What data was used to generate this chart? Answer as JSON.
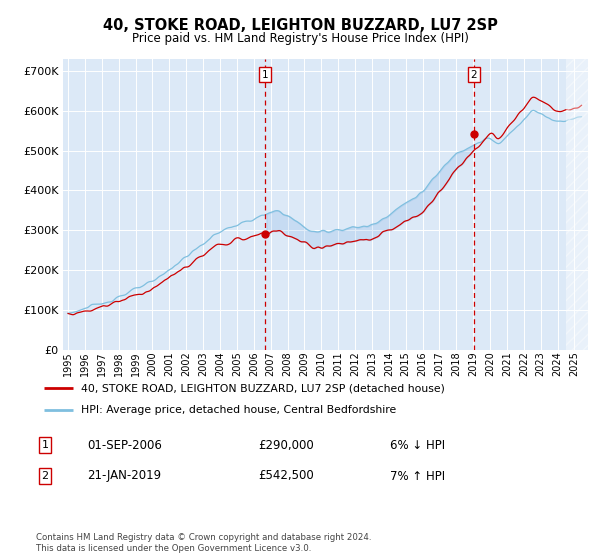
{
  "title": "40, STOKE ROAD, LEIGHTON BUZZARD, LU7 2SP",
  "subtitle": "Price paid vs. HM Land Registry's House Price Index (HPI)",
  "plot_bg_color": "#dce9f7",
  "ylim": [
    0,
    730000
  ],
  "yticks": [
    0,
    100000,
    200000,
    300000,
    400000,
    500000,
    600000,
    700000
  ],
  "sale1_date_num": 2006.67,
  "sale1_price": 290000,
  "sale2_date_num": 2019.05,
  "sale2_price": 542500,
  "hpi_color": "#7fbfdf",
  "price_color": "#cc0000",
  "legend_label1": "40, STOKE ROAD, LEIGHTON BUZZARD, LU7 2SP (detached house)",
  "legend_label2": "HPI: Average price, detached house, Central Bedfordshire",
  "table_row1_num": "1",
  "table_row1_date": "01-SEP-2006",
  "table_row1_price": "£290,000",
  "table_row1_hpi": "6% ↓ HPI",
  "table_row2_num": "2",
  "table_row2_date": "21-JAN-2019",
  "table_row2_price": "£542,500",
  "table_row2_hpi": "7% ↑ HPI",
  "footer": "Contains HM Land Registry data © Crown copyright and database right 2024.\nThis data is licensed under the Open Government Licence v3.0.",
  "xlim_start": 1994.7,
  "xlim_end": 2025.8
}
